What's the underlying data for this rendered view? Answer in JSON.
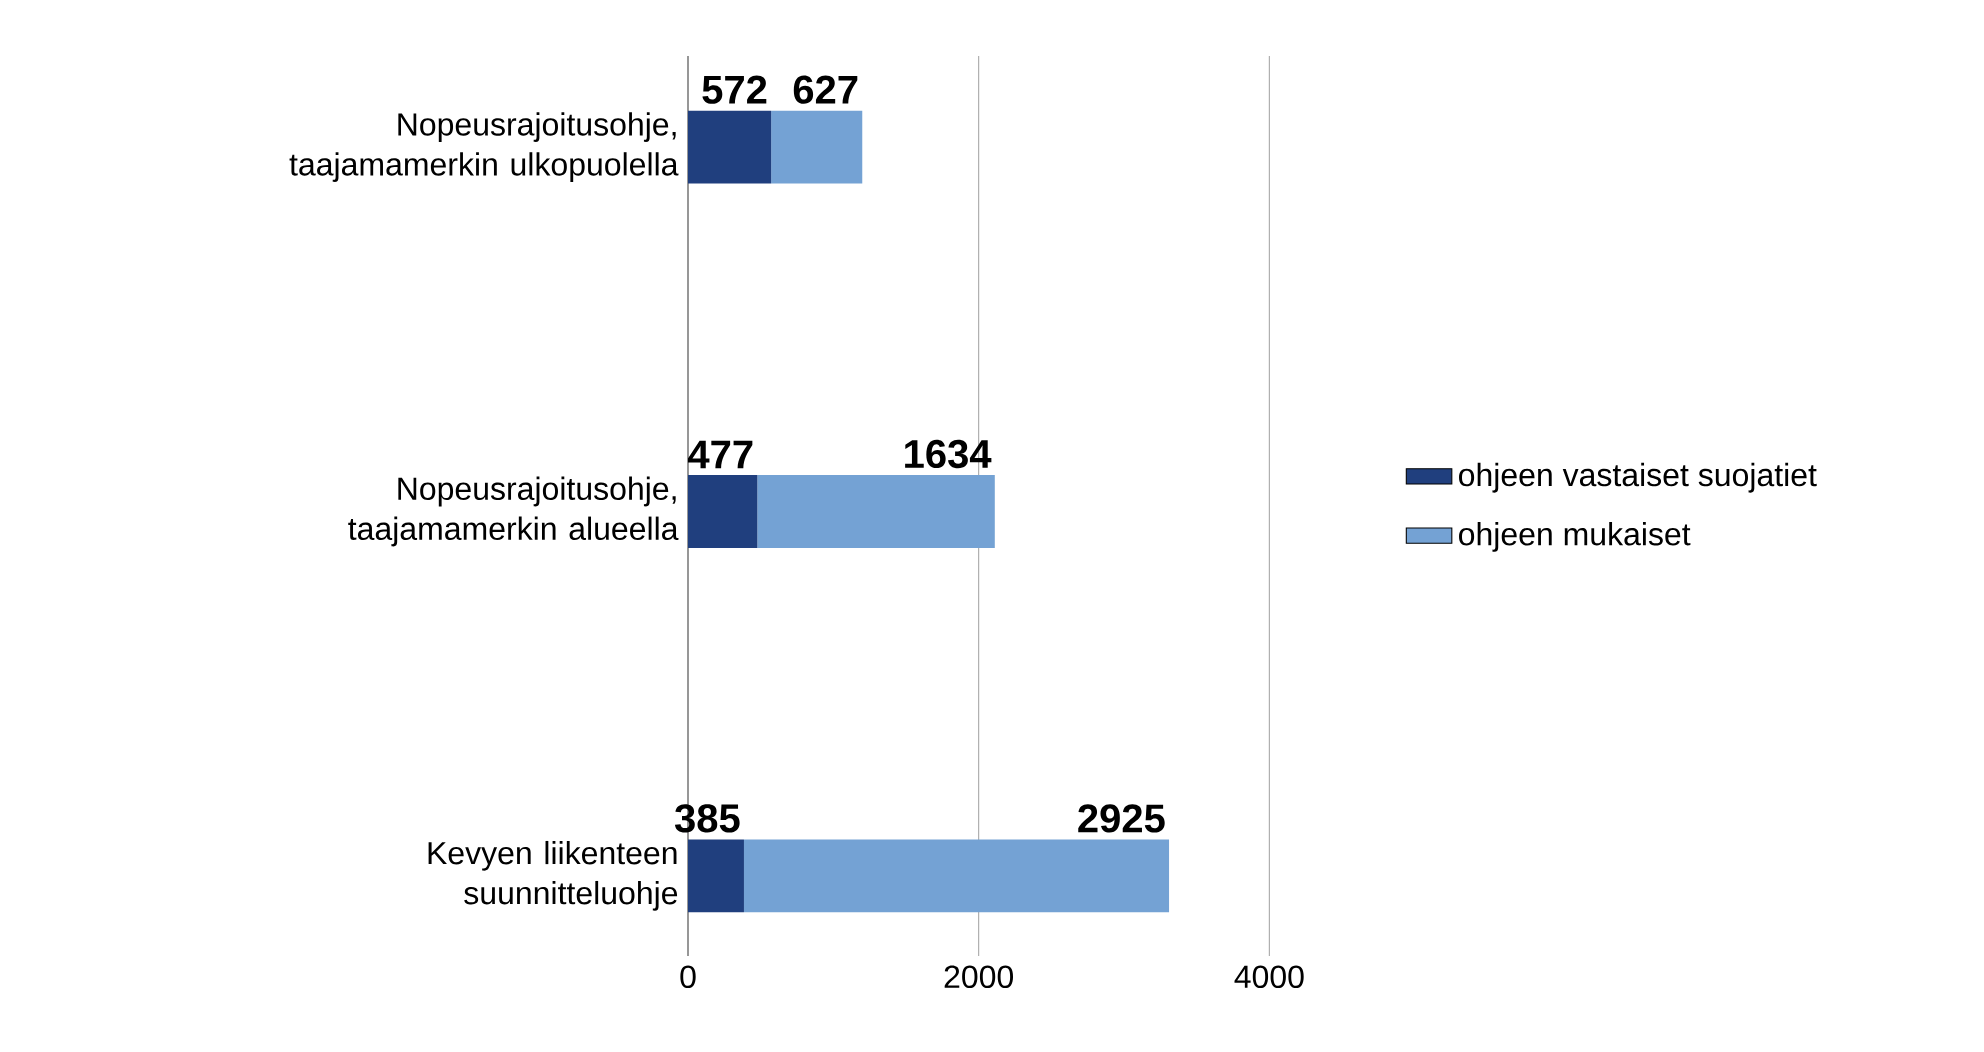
{
  "chart_data": {
    "type": "bar",
    "orientation": "horizontal",
    "stacked": true,
    "categories": [
      "Nopeusrajoitusohje, taajamamerkin ulkopuolella",
      "Nopeusrajoitusohje, taajamamerkin alueella",
      "Kevyen liikenteen suunnitteluohje"
    ],
    "series": [
      {
        "name": "ohjeen  vastaiset suojatiet",
        "color": "#203f7e",
        "values": [
          572,
          477,
          385
        ]
      },
      {
        "name": "ohjeen mukaiset",
        "color": "#74a2d4",
        "values": [
          627,
          1634,
          2925
        ]
      }
    ],
    "xlim": [
      0,
      4000
    ],
    "xticks": [
      0,
      2000,
      4000
    ],
    "grid": "x",
    "legend": "right",
    "data_labels": true
  }
}
